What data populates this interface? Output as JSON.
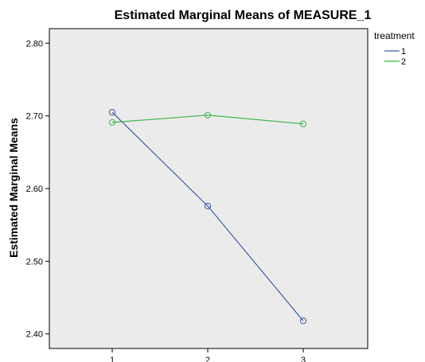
{
  "chart_data": {
    "type": "line",
    "title": "Estimated Marginal Means of MEASURE_1",
    "xlabel": "",
    "ylabel": "Estimated Marginal Means",
    "categories": [
      "1",
      "2",
      "3"
    ],
    "ylim": [
      2.38,
      2.82
    ],
    "yticks": [
      "2.40",
      "2.50",
      "2.60",
      "2.70",
      "2.80"
    ],
    "grid": false,
    "legend": {
      "title": "treatment",
      "placement": "right"
    },
    "series": [
      {
        "name": "1",
        "color": "#3c5aa6",
        "values": [
          2.705,
          2.576,
          2.418
        ]
      },
      {
        "name": "2",
        "color": "#3cb44b",
        "values": [
          2.691,
          2.701,
          2.689
        ]
      }
    ],
    "plot_background": "#ebebeb"
  }
}
